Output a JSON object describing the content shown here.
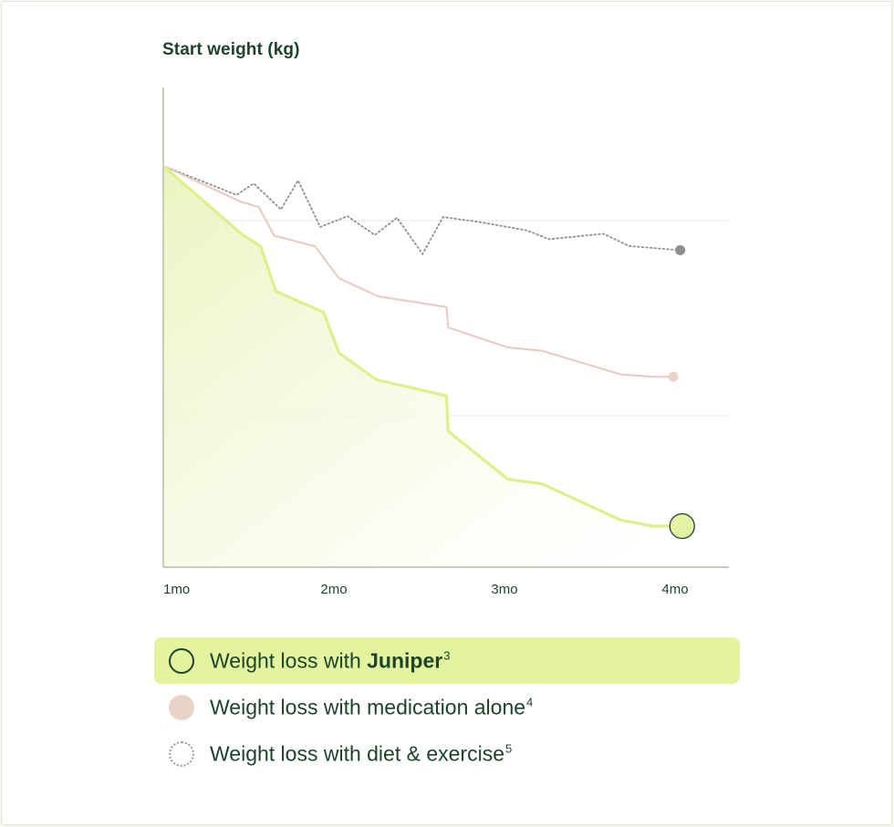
{
  "chart_data": {
    "type": "line",
    "title": "Start weight (kg)",
    "x_ticks": [
      "1mo",
      "2mo",
      "3mo",
      "4mo"
    ],
    "xlim": [
      1,
      4.33
    ],
    "ylim": [
      0,
      100
    ],
    "grid": true,
    "series": [
      {
        "name": "Weight loss with diet & exercise",
        "color": "#8f8f8f",
        "style": "dotted",
        "x": [
          1.0,
          1.43,
          1.53,
          1.69,
          1.79,
          1.92,
          2.08,
          2.24,
          2.37,
          2.52,
          2.64,
          2.85,
          3.13,
          3.26,
          3.58,
          3.73,
          4.03
        ],
        "y": [
          100.0,
          92.4,
          95.4,
          88.6,
          96.2,
          84.0,
          86.8,
          81.9,
          86.4,
          76.9,
          86.6,
          85.3,
          83.1,
          80.8,
          82.2,
          79.0,
          77.9
        ]
      },
      {
        "name": "Weight loss with medication alone",
        "color": "#e9cabd",
        "style": "solid",
        "x": [
          1.0,
          1.45,
          1.56,
          1.65,
          1.89,
          2.03,
          2.26,
          2.66,
          2.67,
          3.02,
          3.22,
          3.68,
          3.87,
          3.99
        ],
        "y": [
          100.0,
          90.7,
          89.2,
          81.7,
          78.9,
          70.5,
          65.8,
          63.0,
          57.6,
          52.4,
          51.5,
          45.3,
          44.7,
          44.7
        ]
      },
      {
        "name": "Weight loss with Juniper",
        "color": "#ddf08a",
        "style": "solid",
        "x": [
          1.0,
          1.46,
          1.57,
          1.66,
          1.94,
          2.03,
          2.25,
          2.66,
          2.67,
          3.02,
          3.22,
          3.68,
          3.87,
          4.02
        ],
        "y": [
          100.0,
          82.1,
          79.0,
          67.1,
          61.6,
          50.9,
          43.9,
          39.7,
          30.4,
          17.8,
          16.6,
          7.1,
          5.5,
          5.5
        ]
      }
    ]
  },
  "legend": [
    {
      "prefix": "Weight loss with ",
      "strong": "Juniper",
      "sup": "3"
    },
    {
      "prefix": "Weight loss with medication alone",
      "strong": "",
      "sup": "4"
    },
    {
      "prefix": "Weight loss with diet & exercise",
      "strong": "",
      "sup": "5"
    }
  ],
  "colors": {
    "dark_green": "#1d4429",
    "juniper_line": "#ddf08a",
    "juniper_highlight": "#e4f39e",
    "medication": "#e9cabd",
    "diet": "#8f8f8f",
    "axis": "#c9cdb7",
    "grid": "#e8e8e2"
  }
}
